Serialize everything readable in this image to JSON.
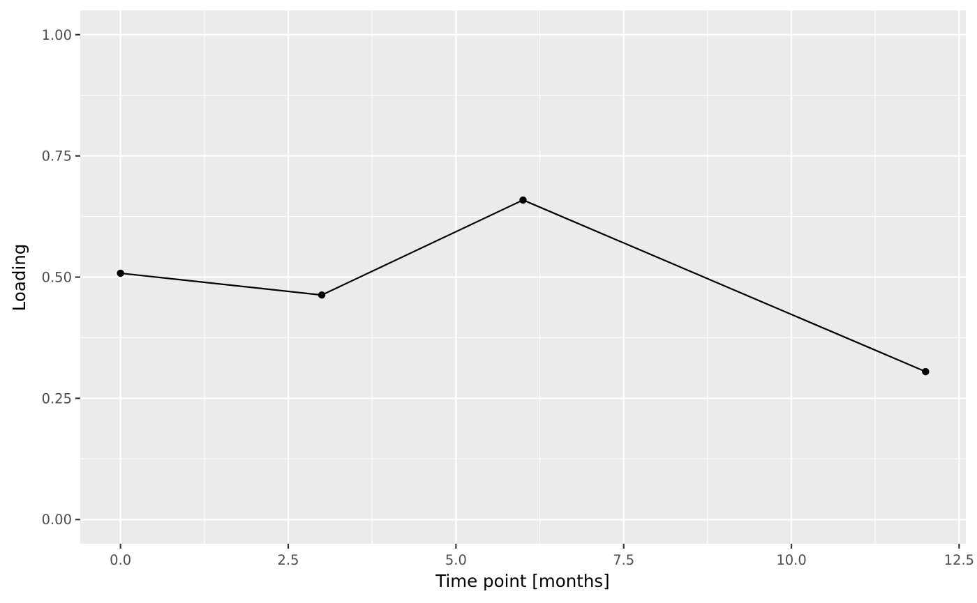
{
  "chart_data": {
    "type": "line",
    "xlabel": "Time point [months]",
    "ylabel": "Loading",
    "xlim": [
      -0.6,
      12.6
    ],
    "ylim": [
      -0.05,
      1.05
    ],
    "x_ticks": [
      0,
      2.5,
      5,
      7.5,
      10,
      12.5
    ],
    "x_tick_labels": [
      "0.0",
      "2.5",
      "5.0",
      "7.5",
      "10.0",
      "12.5"
    ],
    "y_ticks": [
      0,
      0.25,
      0.5,
      0.75,
      1
    ],
    "y_tick_labels": [
      "0.00",
      "0.25",
      "0.50",
      "0.75",
      "1.00"
    ],
    "grid": true,
    "legend": "none",
    "colors": {
      "panel": "#ebebeb",
      "grid": "#ffffff",
      "series": "#000000"
    },
    "series": [
      {
        "x": [
          0,
          3,
          6,
          12
        ],
        "values": [
          0.508,
          0.463,
          0.659,
          0.305
        ]
      }
    ]
  }
}
